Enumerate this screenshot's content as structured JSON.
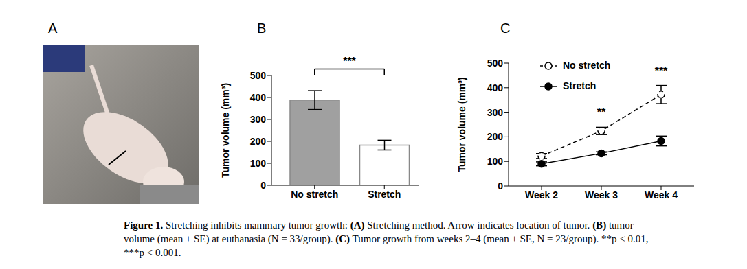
{
  "panel_labels": [
    "A",
    "B",
    "C"
  ],
  "chart_data": [
    {
      "type": "bar",
      "categories": [
        "No stretch",
        "Stretch"
      ],
      "values": [
        388,
        183
      ],
      "errors": [
        43,
        22
      ],
      "colors": [
        "#a0a0a0",
        "#ffffff"
      ],
      "y_label": "Tumor volume (mm³)",
      "ylim": [
        0,
        500
      ],
      "yticks": [
        0,
        100,
        200,
        300,
        400,
        500
      ],
      "significance": [
        {
          "categories": [
            "No stretch",
            "Stretch"
          ],
          "label": "***"
        }
      ]
    },
    {
      "type": "line",
      "categories": [
        "Week 2",
        "Week 3",
        "Week 4"
      ],
      "y_label": "Tumor volume (mm³)",
      "ylim": [
        0,
        500
      ],
      "yticks": [
        0,
        100,
        200,
        300,
        400,
        500
      ],
      "legend": "top-left",
      "series": [
        {
          "name": "No stretch",
          "color": "#000000",
          "marker": "open_circle",
          "line_style": "dashed",
          "values": [
            122,
            224,
            372
          ],
          "errors": [
            10,
            15,
            37
          ]
        },
        {
          "name": "Stretch",
          "color": "#000000",
          "marker": "circle",
          "line_style": "solid",
          "values": [
            90,
            133,
            183
          ],
          "errors": [
            8,
            6,
            20
          ]
        }
      ],
      "significance": [
        {
          "category": "Week 3",
          "label": "**"
        },
        {
          "category": "Week 4",
          "label": "***"
        }
      ]
    }
  ],
  "caption": {
    "label": "Figure 1.",
    "text": "Stretching inhibits mammary tumor growth: (A) Stretching method. Arrow indicates location of tumor. (B) tumor volume (mean ± SE) at euthanasia (N = 33/group). (C) Tumor growth from weeks 2–4 (mean ± SE, N = 23/group). **p < 0.01, ***p < 0.001."
  }
}
